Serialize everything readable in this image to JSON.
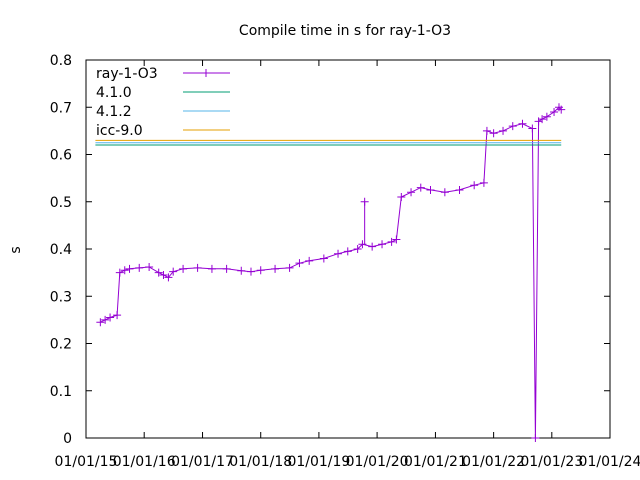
{
  "chart_data": {
    "type": "line",
    "title": "Compile time in s for ray-1-O3",
    "xlabel": "",
    "ylabel": "s",
    "xlim": [
      "2015-01-01",
      "2024-01-01"
    ],
    "ylim": [
      0,
      0.8
    ],
    "x_ticks": [
      "01/01/15",
      "01/01/16",
      "01/01/17",
      "01/01/18",
      "01/01/19",
      "01/01/20",
      "01/01/21",
      "01/01/22",
      "01/01/23",
      "01/01/24"
    ],
    "y_ticks": [
      "0",
      "0.1",
      "0.2",
      "0.3",
      "0.4",
      "0.5",
      "0.6",
      "0.7",
      "0.8"
    ],
    "legend_position": "top-left",
    "series": [
      {
        "name": "ray-1-O3",
        "style": "linespoints",
        "color": "#9400d3",
        "points": [
          [
            "2015-04-01",
            0.245
          ],
          [
            "2015-05-01",
            0.25
          ],
          [
            "2015-06-01",
            0.255
          ],
          [
            "2015-07-15",
            0.26
          ],
          [
            "2015-08-01",
            0.35
          ],
          [
            "2015-09-01",
            0.355
          ],
          [
            "2015-10-01",
            0.358
          ],
          [
            "2015-12-01",
            0.36
          ],
          [
            "2016-02-01",
            0.362
          ],
          [
            "2016-04-01",
            0.35
          ],
          [
            "2016-05-01",
            0.345
          ],
          [
            "2016-06-01",
            0.34
          ],
          [
            "2016-07-01",
            0.352
          ],
          [
            "2016-09-01",
            0.358
          ],
          [
            "2016-12-01",
            0.36
          ],
          [
            "2017-03-01",
            0.358
          ],
          [
            "2017-06-01",
            0.358
          ],
          [
            "2017-09-01",
            0.354
          ],
          [
            "2017-11-01",
            0.352
          ],
          [
            "2018-01-01",
            0.355
          ],
          [
            "2018-04-01",
            0.358
          ],
          [
            "2018-07-01",
            0.36
          ],
          [
            "2018-09-01",
            0.37
          ],
          [
            "2018-11-01",
            0.375
          ],
          [
            "2019-02-01",
            0.38
          ],
          [
            "2019-05-01",
            0.39
          ],
          [
            "2019-07-01",
            0.395
          ],
          [
            "2019-09-01",
            0.4
          ],
          [
            "2019-10-01",
            0.41
          ],
          [
            "2019-12-01",
            0.405
          ],
          [
            "2020-02-01",
            0.41
          ],
          [
            "2020-04-01",
            0.415
          ],
          [
            "2020-05-01",
            0.42
          ],
          [
            "2020-06-01",
            0.51
          ],
          [
            "2020-08-01",
            0.52
          ],
          [
            "2020-10-01",
            0.53
          ],
          [
            "2020-12-01",
            0.525
          ],
          [
            "2021-03-01",
            0.52
          ],
          [
            "2021-06-01",
            0.525
          ],
          [
            "2021-09-01",
            0.535
          ],
          [
            "2021-11-01",
            0.54
          ],
          [
            "2021-11-20",
            0.65
          ],
          [
            "2022-01-01",
            0.645
          ],
          [
            "2022-03-01",
            0.65
          ],
          [
            "2022-05-01",
            0.66
          ],
          [
            "2022-07-01",
            0.665
          ],
          [
            "2022-09-01",
            0.655
          ],
          [
            "2022-09-20",
            0.0
          ],
          [
            "2022-10-10",
            0.67
          ],
          [
            "2022-11-01",
            0.675
          ],
          [
            "2022-12-01",
            0.68
          ],
          [
            "2023-01-15",
            0.69
          ],
          [
            "2023-02-15",
            0.7
          ],
          [
            "2023-03-01",
            0.695
          ]
        ],
        "spikes": [
          [
            "2019-10-15",
            0.5
          ]
        ]
      },
      {
        "name": "4.1.0",
        "style": "hline",
        "color": "#009e73",
        "value": 0.62,
        "x_range": [
          "2015-03-01",
          "2023-03-01"
        ]
      },
      {
        "name": "4.1.2",
        "style": "hline",
        "color": "#56b4e9",
        "value": 0.625,
        "x_range": [
          "2015-03-01",
          "2023-03-01"
        ]
      },
      {
        "name": "icc-9.0",
        "style": "hline",
        "color": "#e69f00",
        "value": 0.63,
        "x_range": [
          "2015-03-01",
          "2023-03-01"
        ]
      }
    ]
  }
}
